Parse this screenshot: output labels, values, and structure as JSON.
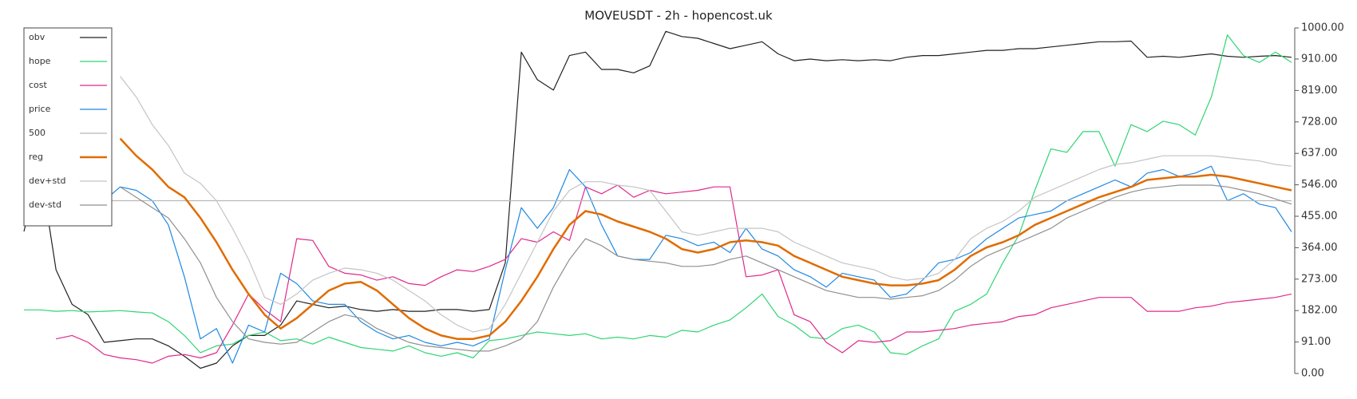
{
  "chart_data": {
    "type": "line",
    "title": "MOVEUSDT - 2h - hopencost.uk",
    "ylim": [
      0,
      1000
    ],
    "yticks": [
      {
        "value": 0,
        "label": "0.00"
      },
      {
        "value": 91,
        "label": "91.00"
      },
      {
        "value": 182,
        "label": "182.00"
      },
      {
        "value": 273,
        "label": "273.00"
      },
      {
        "value": 364,
        "label": "364.00"
      },
      {
        "value": 455,
        "label": "455.00"
      },
      {
        "value": 546,
        "label": "546.00"
      },
      {
        "value": 637,
        "label": "637.00"
      },
      {
        "value": 728,
        "label": "728.00"
      },
      {
        "value": 819,
        "label": "819.00"
      },
      {
        "value": 910,
        "label": "910.00"
      },
      {
        "value": 1000,
        "label": "1000.00"
      }
    ],
    "grid": false,
    "legend": "upper left",
    "series": [
      {
        "name": "obv",
        "color": "#222222",
        "values": [
          411,
          600,
          300,
          200,
          170,
          90,
          95,
          100,
          100,
          80,
          50,
          15,
          30,
          80,
          110,
          110,
          140,
          210,
          200,
          190,
          195,
          185,
          180,
          185,
          180,
          180,
          185,
          185,
          180,
          185,
          320,
          930,
          850,
          820,
          920,
          930,
          880,
          880,
          870,
          890,
          990,
          975,
          970,
          955,
          940,
          950,
          960,
          925,
          905,
          910,
          905,
          908,
          905,
          908,
          905,
          915,
          920,
          920,
          925,
          930,
          935,
          935,
          940,
          940,
          945,
          950,
          955,
          960,
          960,
          962,
          915,
          918,
          915,
          920,
          925,
          918,
          915,
          918,
          920,
          915
        ]
      },
      {
        "name": "hope",
        "color": "#2ed573",
        "values": [
          184,
          184,
          180,
          182,
          178,
          180,
          182,
          178,
          175,
          150,
          110,
          60,
          80,
          85,
          110,
          120,
          95,
          100,
          85,
          105,
          90,
          75,
          70,
          65,
          80,
          60,
          50,
          60,
          45,
          95,
          100,
          110,
          120,
          115,
          110,
          115,
          100,
          105,
          100,
          110,
          105,
          125,
          120,
          140,
          155,
          190,
          230,
          165,
          140,
          105,
          100,
          130,
          140,
          120,
          60,
          55,
          80,
          100,
          180,
          200,
          230,
          320,
          400,
          530,
          650,
          640,
          700,
          700,
          600,
          720,
          700,
          730,
          720,
          690,
          800,
          980,
          920,
          900,
          930,
          900
        ]
      },
      {
        "name": "cost",
        "color": "#e0288a",
        "values": [
          null,
          null,
          100,
          110,
          90,
          55,
          45,
          40,
          30,
          50,
          55,
          45,
          60,
          140,
          230,
          185,
          150,
          390,
          385,
          310,
          290,
          285,
          270,
          280,
          260,
          255,
          280,
          300,
          295,
          310,
          330,
          390,
          380,
          410,
          385,
          540,
          520,
          545,
          510,
          530,
          520,
          525,
          530,
          540,
          540,
          280,
          285,
          300,
          170,
          150,
          90,
          60,
          95,
          90,
          95,
          120,
          120,
          125,
          130,
          140,
          145,
          150,
          165,
          170,
          190,
          200,
          210,
          220,
          220,
          220,
          180,
          180,
          180,
          190,
          195,
          205,
          210,
          215,
          220,
          230
        ]
      },
      {
        "name": "price",
        "color": "#1e88e5",
        "values": [
          null,
          null,
          null,
          null,
          563,
          500,
          540,
          530,
          500,
          430,
          280,
          100,
          130,
          30,
          140,
          120,
          290,
          260,
          210,
          200,
          200,
          150,
          120,
          100,
          110,
          90,
          80,
          90,
          80,
          100,
          300,
          480,
          420,
          480,
          590,
          540,
          430,
          340,
          330,
          330,
          400,
          390,
          370,
          380,
          350,
          420,
          360,
          340,
          300,
          280,
          250,
          290,
          280,
          270,
          220,
          230,
          270,
          320,
          330,
          350,
          390,
          420,
          450,
          460,
          470,
          500,
          520,
          540,
          560,
          540,
          580,
          590,
          570,
          580,
          600,
          500,
          520,
          490,
          480,
          410
        ]
      },
      {
        "name": "500",
        "color": "#b8b8b8",
        "values": [
          500,
          500,
          500,
          500,
          500,
          500,
          500,
          500,
          500,
          500,
          500,
          500,
          500,
          500,
          500,
          500,
          500,
          500,
          500,
          500,
          500,
          500,
          500,
          500,
          500,
          500,
          500,
          500,
          500,
          500,
          500,
          500,
          500,
          500,
          500,
          500,
          500,
          500,
          500,
          500,
          500,
          500,
          500,
          500,
          500,
          500,
          500,
          500,
          500,
          500,
          500,
          500,
          500,
          500,
          500,
          500,
          500,
          500,
          500,
          500,
          500,
          500,
          500,
          500,
          500,
          500,
          500,
          500,
          500,
          500,
          500,
          500,
          500,
          500,
          500,
          500,
          500,
          500,
          500,
          500
        ]
      },
      {
        "name": "reg",
        "color": "#e06c00",
        "values": [
          null,
          null,
          null,
          null,
          null,
          null,
          680,
          630,
          590,
          540,
          510,
          450,
          380,
          300,
          230,
          170,
          130,
          160,
          200,
          240,
          260,
          265,
          240,
          200,
          160,
          130,
          110,
          100,
          100,
          110,
          150,
          210,
          280,
          360,
          430,
          470,
          460,
          440,
          425,
          410,
          390,
          360,
          350,
          360,
          380,
          385,
          380,
          370,
          340,
          320,
          300,
          280,
          270,
          260,
          255,
          255,
          260,
          270,
          300,
          340,
          365,
          380,
          400,
          430,
          450,
          470,
          490,
          510,
          525,
          540,
          560,
          565,
          570,
          570,
          575,
          570,
          560,
          550,
          540,
          530
        ]
      },
      {
        "name": "dev+std",
        "color": "#c4c4c4",
        "values": [
          null,
          null,
          null,
          null,
          null,
          null,
          860,
          800,
          720,
          660,
          580,
          550,
          500,
          420,
          330,
          220,
          200,
          230,
          270,
          290,
          305,
          300,
          290,
          270,
          240,
          210,
          170,
          140,
          120,
          130,
          200,
          290,
          380,
          470,
          530,
          555,
          555,
          545,
          540,
          530,
          470,
          410,
          400,
          410,
          420,
          420,
          420,
          410,
          380,
          360,
          340,
          320,
          310,
          300,
          280,
          270,
          275,
          290,
          330,
          390,
          420,
          440,
          470,
          510,
          530,
          550,
          570,
          590,
          605,
          610,
          620,
          630,
          630,
          630,
          630,
          625,
          620,
          615,
          605,
          600
        ]
      },
      {
        "name": "dev-std",
        "color": "#8f8f8f",
        "values": [
          null,
          null,
          null,
          null,
          null,
          null,
          540,
          510,
          480,
          450,
          390,
          320,
          220,
          150,
          100,
          90,
          85,
          90,
          120,
          150,
          170,
          160,
          130,
          110,
          90,
          80,
          75,
          70,
          65,
          65,
          80,
          100,
          150,
          250,
          330,
          390,
          370,
          340,
          330,
          325,
          320,
          310,
          310,
          315,
          330,
          340,
          320,
          300,
          280,
          260,
          240,
          230,
          220,
          220,
          215,
          220,
          225,
          240,
          270,
          310,
          340,
          360,
          380,
          400,
          420,
          450,
          470,
          490,
          510,
          525,
          535,
          540,
          545,
          545,
          545,
          540,
          530,
          520,
          505,
          490
        ]
      }
    ]
  }
}
